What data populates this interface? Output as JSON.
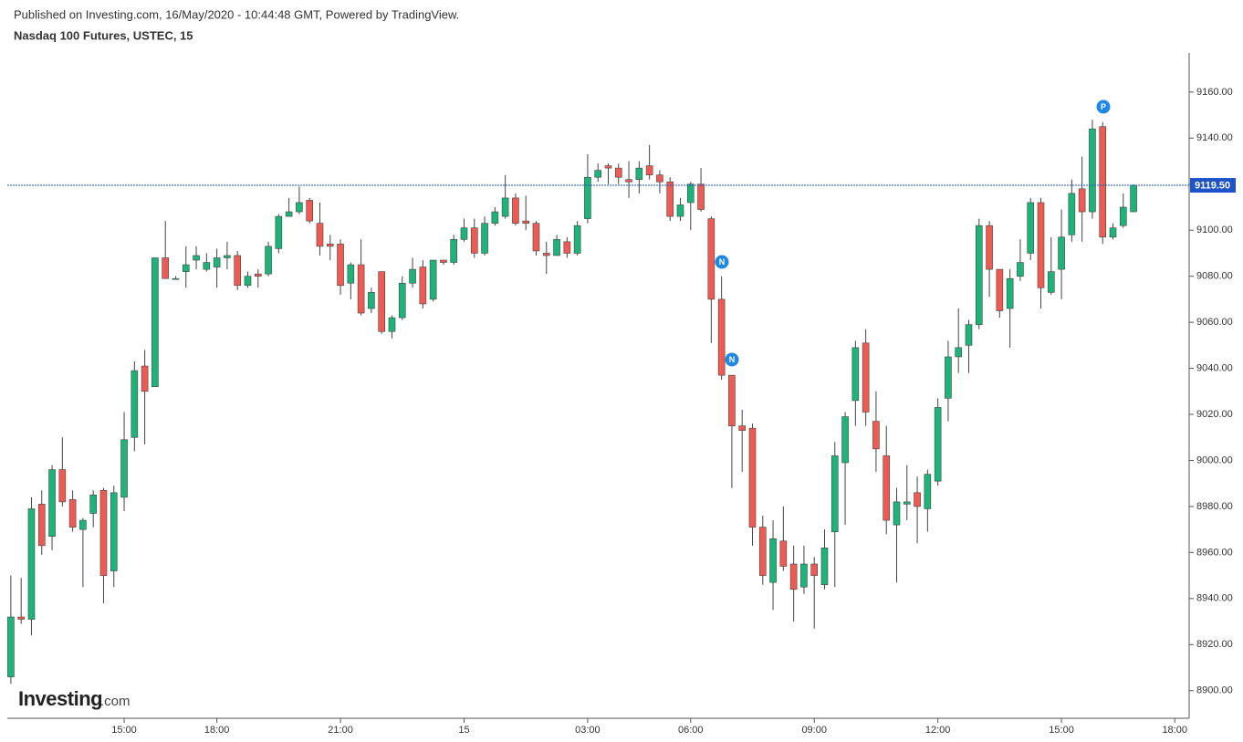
{
  "header": {
    "published": "Published on Investing.com, 16/May/2020 - 10:44:48 GMT, Powered by TradingView.",
    "symbol": "Nasdaq 100 Futures, USTEC, 15"
  },
  "logo": {
    "brand": "Investing",
    "suffix": ".com"
  },
  "chart_data": {
    "type": "candlestick",
    "categories": [
      null,
      null,
      null,
      null,
      null,
      null,
      null,
      null,
      null,
      null,
      null,
      "15:00",
      null,
      null,
      null,
      null,
      null,
      null,
      null,
      null,
      "18:00",
      null,
      null,
      null,
      null,
      null,
      null,
      null,
      null,
      null,
      null,
      null,
      "21:00",
      null,
      null,
      null,
      null,
      null,
      null,
      null,
      null,
      null,
      null,
      null,
      "15",
      null,
      null,
      null,
      null,
      null,
      null,
      null,
      null,
      null,
      null,
      null,
      "03:00",
      null,
      null,
      null,
      null,
      null,
      null,
      null,
      null,
      null,
      "06:00",
      null,
      null,
      null,
      null,
      null,
      null,
      null,
      null,
      null,
      null,
      null,
      "09:00",
      null,
      null,
      null,
      null,
      null,
      null,
      null,
      null,
      null,
      null,
      null,
      "12:00",
      null,
      null,
      null,
      null,
      null,
      null,
      null,
      null,
      null,
      null,
      null,
      "15:00",
      null,
      null,
      null,
      null,
      null,
      null,
      null,
      null,
      null,
      null,
      "18:00",
      null
    ],
    "open": [
      8906,
      8932,
      8931,
      8981,
      8967,
      8996,
      8983,
      8970,
      8977,
      8987,
      8952,
      8984,
      9010,
      9041,
      9032,
      9088,
      9079,
      9082,
      9087,
      9083,
      9084,
      9088,
      9089,
      9076,
      9081,
      9081,
      9092,
      9106,
      9108,
      9113,
      9103,
      9094,
      9094,
      9077,
      9085,
      9066,
      9082,
      9056,
      9062,
      9077,
      9084,
      9070,
      9087,
      9086,
      9096,
      9101,
      9090,
      9103,
      9106,
      9114,
      9104,
      9103,
      9090,
      9089,
      9095,
      9090,
      9105,
      9123,
      9128,
      9127,
      9122,
      9122,
      9128,
      9124,
      9121,
      9106,
      9112,
      9120,
      9105,
      9070,
      9037,
      9015,
      9014,
      8971,
      8947,
      8965,
      8955,
      8945,
      8955,
      8946,
      8969,
      8999,
      9026,
      9051,
      9017,
      9002,
      8972,
      8981,
      8986,
      8979,
      8991,
      9027,
      9045,
      9050,
      9059,
      9102,
      9083,
      9066,
      9080,
      9090,
      9112,
      9073,
      9083,
      9098,
      9118,
      9108,
      9145,
      9097,
      9102,
      9108,
      null,
      null,
      null,
      null,
      null
    ],
    "high": [
      8950,
      8949,
      8984,
      8987,
      8998,
      9010,
      8987,
      8975,
      8987,
      8988,
      8989,
      9021,
      9043,
      9048,
      9088,
      9104,
      9080,
      9093,
      9093,
      9090,
      9092,
      9095,
      9091,
      9082,
      9083,
      9095,
      9107,
      9114,
      9119,
      9114,
      9112,
      9098,
      9096,
      9086,
      9096,
      9075,
      9082,
      9063,
      9080,
      9088,
      9087,
      9087,
      9087,
      9098,
      9105,
      9105,
      9106,
      9110,
      9124,
      9116,
      9115,
      9104,
      9095,
      9098,
      9097,
      9104,
      9133,
      9129,
      9129,
      9129,
      9130,
      9130,
      9137,
      9126,
      9123,
      9114,
      9121,
      9127,
      9106,
      9080,
      9037,
      9022,
      9016,
      8976,
      8974,
      8980,
      8963,
      8963,
      8958,
      8970,
      9008,
      9021,
      9052,
      9057,
      9030,
      9015,
      8988,
      8998,
      8993,
      8996,
      9027,
      9052,
      9066,
      9061,
      9105,
      9104,
      9083,
      9083,
      9096,
      9114,
      9114,
      9097,
      9109,
      9122,
      9132,
      9148,
      9147,
      9103,
      9116,
      9120,
      null,
      null,
      null,
      null,
      null
    ],
    "low": [
      8903,
      8929,
      8924,
      8959,
      8961,
      8980,
      8969,
      8945,
      8971,
      8938,
      8945,
      8978,
      9004,
      9007,
      9032,
      9079,
      9079,
      9075,
      9083,
      9082,
      9075,
      9083,
      9074,
      9075,
      9075,
      9080,
      9090,
      9106,
      9107,
      9103,
      9089,
      9087,
      9072,
      9070,
      9063,
      9064,
      9055,
      9053,
      9061,
      9075,
      9066,
      9069,
      9085,
      9085,
      9095,
      9088,
      9089,
      9102,
      9105,
      9102,
      9100,
      9089,
      9081,
      9089,
      9088,
      9089,
      9103,
      9121,
      9120,
      9120,
      9114,
      9116,
      9122,
      9116,
      9104,
      9104,
      9100,
      9108,
      9051,
      9035,
      8988,
      8995,
      8963,
      8946,
      8935,
      8952,
      8930,
      8942,
      8927,
      8944,
      8945,
      8972,
      9015,
      9015,
      8995,
      8968,
      8947,
      8974,
      8964,
      8969,
      8989,
      9017,
      9038,
      9038,
      9057,
      9071,
      9062,
      9049,
      9078,
      9087,
      9066,
      9072,
      9070,
      9095,
      9095,
      9105,
      9094,
      9096,
      9101,
      9108,
      null,
      null,
      null,
      null,
      null
    ],
    "close": [
      8932,
      8931,
      8979,
      8963,
      8996,
      8982,
      8971,
      8974,
      8985,
      8950,
      8986,
      9009,
      9039,
      9030,
      9088,
      9079,
      9079,
      9085,
      9089,
      9086,
      9088,
      9089,
      9076,
      9080,
      9080,
      9093,
      9106,
      9108,
      9112,
      9104,
      9093,
      9093,
      9076,
      9085,
      9064,
      9073,
      9056,
      9062,
      9077,
      9083,
      9068,
      9087,
      9086,
      9096,
      9101,
      9090,
      9103,
      9108,
      9114,
      9103,
      9103,
      9091,
      9089,
      9096,
      9090,
      9102,
      9123,
      9126,
      9127,
      9123,
      9121,
      9127,
      9124,
      9121,
      9106,
      9111,
      9120,
      9109,
      9070,
      9037,
      9015,
      9013,
      8971,
      8950,
      8966,
      8954,
      8944,
      8955,
      8950,
      8962,
      9002,
      9019,
      9049,
      9021,
      9005,
      8974,
      8982,
      8982,
      8980,
      8994,
      9023,
      9045,
      9049,
      9059,
      9102,
      9083,
      9065,
      9079,
      9086,
      9112,
      9075,
      9082,
      9097,
      9116,
      9108,
      9144,
      9097,
      9101,
      9110,
      9119.5,
      null,
      null,
      null,
      null,
      null
    ],
    "up_color": "#1db47a",
    "down_color": "#ef5b52",
    "ylim": [
      8888,
      9177
    ],
    "yticks": [
      {
        "value": 8900,
        "label": "8900.00"
      },
      {
        "value": 8920,
        "label": "8920.00"
      },
      {
        "value": 8940,
        "label": "8940.00"
      },
      {
        "value": 8960,
        "label": "8960.00"
      },
      {
        "value": 8980,
        "label": "8980.00"
      },
      {
        "value": 9000,
        "label": "9000.00"
      },
      {
        "value": 9020,
        "label": "9020.00"
      },
      {
        "value": 9040,
        "label": "9040.00"
      },
      {
        "value": 9060,
        "label": "9060.00"
      },
      {
        "value": 9080,
        "label": "9080.00"
      },
      {
        "value": 9100,
        "label": "9100.00"
      },
      {
        "value": 9120,
        "label": "9120.00"
      },
      {
        "value": 9140,
        "label": "9140.00"
      },
      {
        "value": 9160,
        "label": "9160.00"
      }
    ],
    "last_price": {
      "value": 9119.5,
      "label": "9119.50"
    },
    "events": [
      "N",
      "N",
      "P"
    ]
  }
}
